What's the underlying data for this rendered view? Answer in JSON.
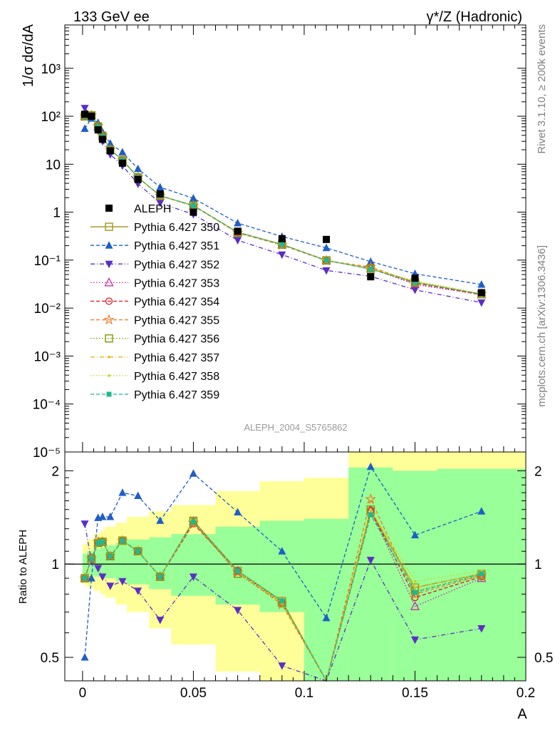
{
  "header": {
    "left": "133 GeV ee",
    "right": "γ*/Z (Hadronic)"
  },
  "side_text": {
    "top": "Rivet 3.1.10, ≥ 200k events",
    "bottom": "mcplots.cern.ch [arXiv:1306.3436]"
  },
  "analysis_label": "ALEPH_2004_S5765862",
  "colors": {
    "ALEPH": "#000000",
    "350": "#a89a28",
    "351": "#1f5fc4",
    "352": "#5b2fc4",
    "353": "#c81ea8",
    "354": "#e01020",
    "355": "#f07820",
    "356": "#8a9a10",
    "357": "#e8b818",
    "358": "#c8d020",
    "359": "#20b890",
    "band_inner": "#99ff99",
    "band_outer": "#ffff99"
  },
  "chart_data": [
    {
      "type": "line",
      "panel": "main",
      "ylabel": "1/σ  dσ/dA",
      "yscale": "log",
      "ylim": [
        1e-05,
        8000
      ],
      "xlim": [
        -0.008,
        0.2
      ],
      "y_tick_labels": [
        "10⁻⁵",
        "10⁻⁴",
        "10⁻³",
        "10⁻²",
        "10⁻¹",
        "1",
        "10",
        "10²",
        "10³"
      ],
      "x": [
        0.001,
        0.004,
        0.007,
        0.009,
        0.0125,
        0.018,
        0.025,
        0.035,
        0.05,
        0.07,
        0.09,
        0.11,
        0.13,
        0.15,
        0.18
      ],
      "data": {
        "name": "ALEPH",
        "y": [
          110,
          100,
          52,
          33,
          19,
          10.5,
          4.8,
          2.4,
          1.0,
          0.4,
          0.28,
          0.27,
          0.045,
          0.042,
          0.021
        ]
      },
      "legend_position": "center-left",
      "series": [
        {
          "name": "Pythia 6.427 350",
          "key": "350",
          "y": [
            100,
            105,
            61,
            39,
            20,
            12.2,
            5.3,
            2.2,
            1.38,
            0.38,
            0.213,
            0.099,
            0.066,
            0.035,
            0.0195
          ]
        },
        {
          "name": "Pythia 6.427 351",
          "key": "351",
          "y": [
            55,
            90,
            73,
            47,
            27,
            17.8,
            8.0,
            3.3,
            1.95,
            0.59,
            0.31,
            0.18,
            0.093,
            0.052,
            0.031
          ]
        },
        {
          "name": "Pythia 6.427 352",
          "key": "352",
          "y": [
            148,
            101,
            50,
            30,
            16,
            9.3,
            3.9,
            1.55,
            0.9,
            0.26,
            0.13,
            0.061,
            0.046,
            0.024,
            0.013
          ]
        },
        {
          "name": "Pythia 6.427 353",
          "key": "353",
          "y": [
            99,
            104,
            61,
            39,
            20,
            12.2,
            5.3,
            2.2,
            1.37,
            0.38,
            0.21,
            0.098,
            0.067,
            0.031,
            0.019
          ]
        },
        {
          "name": "Pythia 6.427 354",
          "key": "354",
          "y": [
            99,
            105,
            61,
            39,
            20,
            12.2,
            5.3,
            2.2,
            1.35,
            0.38,
            0.21,
            0.098,
            0.067,
            0.033,
            0.019
          ]
        },
        {
          "name": "Pythia 6.427 355",
          "key": "355",
          "y": [
            99,
            104,
            62,
            39,
            20,
            12.3,
            5.3,
            2.2,
            1.36,
            0.37,
            0.205,
            0.097,
            0.072,
            0.034,
            0.0195
          ]
        },
        {
          "name": "Pythia 6.427 356",
          "key": "356",
          "y": [
            99,
            104,
            61,
            39,
            20,
            12.2,
            5.3,
            2.2,
            1.37,
            0.37,
            0.21,
            0.098,
            0.067,
            0.034,
            0.0195
          ]
        },
        {
          "name": "Pythia 6.427 357",
          "key": "357",
          "y": [
            100,
            105,
            61,
            39,
            20,
            12.2,
            5.3,
            2.2,
            1.37,
            0.38,
            0.21,
            0.099,
            0.067,
            0.035,
            0.0195
          ]
        },
        {
          "name": "Pythia 6.427 358",
          "key": "358",
          "y": [
            100,
            105,
            61,
            39,
            20,
            12.2,
            5.3,
            2.2,
            1.37,
            0.38,
            0.21,
            0.099,
            0.067,
            0.037,
            0.02
          ]
        },
        {
          "name": "Pythia 6.427 359",
          "key": "359",
          "y": [
            99,
            104,
            61,
            39,
            20,
            12.2,
            5.3,
            2.2,
            1.37,
            0.38,
            0.213,
            0.099,
            0.065,
            0.034,
            0.0195
          ]
        }
      ]
    },
    {
      "type": "line",
      "panel": "ratio",
      "ylabel": "Ratio to ALEPH",
      "xlabel": "A",
      "yscale": "log",
      "ylim": [
        0.42,
        2.3
      ],
      "xlim": [
        -0.008,
        0.2
      ],
      "x_tick_labels": [
        "0",
        "0.05",
        "0.1",
        "0.15",
        "0.2"
      ],
      "y_tick_labels": [
        "0.5",
        "1",
        "2"
      ],
      "reference_line": 1,
      "x": [
        0.001,
        0.004,
        0.007,
        0.009,
        0.0125,
        0.018,
        0.025,
        0.035,
        0.05,
        0.07,
        0.09,
        0.11,
        0.13,
        0.15,
        0.18
      ],
      "bands": {
        "edges": [
          0,
          0.002,
          0.005,
          0.008,
          0.01,
          0.015,
          0.02,
          0.03,
          0.04,
          0.06,
          0.08,
          0.1,
          0.12,
          0.14,
          0.16,
          0.2
        ],
        "inner": [
          [
            0.92,
            1.08
          ],
          [
            0.92,
            1.1
          ],
          [
            0.91,
            1.12
          ],
          [
            0.9,
            1.13
          ],
          [
            0.9,
            1.15
          ],
          [
            0.88,
            1.17
          ],
          [
            0.86,
            1.2
          ],
          [
            0.83,
            1.22
          ],
          [
            0.79,
            1.25
          ],
          [
            0.74,
            1.32
          ],
          [
            0.7,
            1.38
          ],
          [
            0.3,
            1.4
          ],
          [
            0.3,
            2.05
          ],
          [
            0.3,
            2.0
          ],
          [
            0.3,
            2.03
          ]
        ],
        "outer": [
          [
            0.86,
            1.16
          ],
          [
            0.84,
            1.2
          ],
          [
            0.82,
            1.25
          ],
          [
            0.8,
            1.28
          ],
          [
            0.78,
            1.32
          ],
          [
            0.74,
            1.36
          ],
          [
            0.7,
            1.42
          ],
          [
            0.62,
            1.48
          ],
          [
            0.55,
            1.55
          ],
          [
            0.45,
            1.72
          ],
          [
            0.4,
            1.85
          ],
          [
            0.3,
            1.9
          ],
          [
            0.3,
            2.5
          ],
          [
            0.3,
            2.3
          ],
          [
            0.3,
            2.5
          ]
        ]
      },
      "series": [
        {
          "name": "Pythia 6.427 350",
          "key": "350",
          "y": [
            0.9,
            1.04,
            1.17,
            1.18,
            1.06,
            1.19,
            1.1,
            0.91,
            1.38,
            0.95,
            0.76,
            0.37,
            1.47,
            0.84,
            0.93
          ]
        },
        {
          "name": "Pythia 6.427 351",
          "key": "351",
          "y": [
            0.5,
            0.9,
            1.41,
            1.42,
            1.42,
            1.7,
            1.66,
            1.38,
            1.96,
            1.47,
            1.1,
            0.67,
            2.06,
            1.24,
            1.48
          ]
        },
        {
          "name": "Pythia 6.427 352",
          "key": "352",
          "y": [
            1.35,
            1.02,
            0.97,
            0.91,
            0.85,
            0.88,
            0.82,
            0.66,
            0.91,
            0.71,
            0.47,
            0.23,
            1.03,
            0.57,
            0.62
          ]
        },
        {
          "name": "Pythia 6.427 353",
          "key": "353",
          "y": [
            0.9,
            1.04,
            1.17,
            1.18,
            1.06,
            1.19,
            1.1,
            0.91,
            1.37,
            0.95,
            0.75,
            0.37,
            1.49,
            0.73,
            0.9
          ]
        },
        {
          "name": "Pythia 6.427 354",
          "key": "354",
          "y": [
            0.9,
            1.05,
            1.17,
            1.18,
            1.06,
            1.19,
            1.1,
            0.91,
            1.35,
            0.95,
            0.75,
            0.36,
            1.49,
            0.78,
            0.91
          ]
        },
        {
          "name": "Pythia 6.427 355",
          "key": "355",
          "y": [
            0.9,
            1.04,
            1.18,
            1.18,
            1.06,
            1.19,
            1.1,
            0.91,
            1.36,
            0.94,
            0.74,
            0.36,
            1.62,
            0.8,
            0.92
          ]
        },
        {
          "name": "Pythia 6.427 356",
          "key": "356",
          "y": [
            0.9,
            1.04,
            1.17,
            1.18,
            1.06,
            1.19,
            1.1,
            0.91,
            1.37,
            0.93,
            0.75,
            0.36,
            1.5,
            0.82,
            0.92
          ]
        },
        {
          "name": "Pythia 6.427 357",
          "key": "357",
          "y": [
            0.9,
            1.05,
            1.17,
            1.18,
            1.06,
            1.19,
            1.1,
            0.91,
            1.37,
            0.95,
            0.75,
            0.37,
            1.5,
            0.84,
            0.93
          ]
        },
        {
          "name": "Pythia 6.427 358",
          "key": "358",
          "y": [
            0.91,
            1.05,
            1.17,
            1.18,
            1.06,
            1.19,
            1.1,
            0.91,
            1.37,
            0.95,
            0.75,
            0.37,
            1.5,
            0.88,
            0.95
          ]
        },
        {
          "name": "Pythia 6.427 359",
          "key": "359",
          "y": [
            0.9,
            1.04,
            1.17,
            1.18,
            1.06,
            1.19,
            1.1,
            0.91,
            1.37,
            0.95,
            0.76,
            0.37,
            1.44,
            0.81,
            0.93
          ]
        }
      ]
    }
  ]
}
